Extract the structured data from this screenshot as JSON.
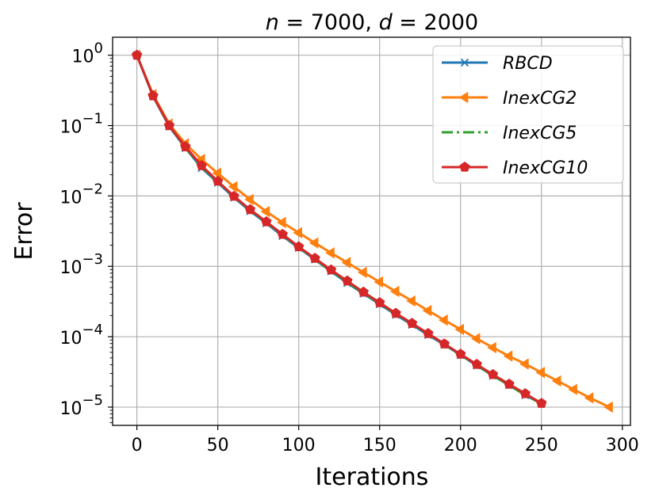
{
  "chart_data": {
    "type": "line",
    "title": "n = 7000, d = 2000",
    "title_parts": {
      "n_label": "n",
      "n_value": "7000",
      "d_label": "d",
      "d_value": "2000"
    },
    "xlabel": "Iterations",
    "ylabel": "Error",
    "yscale": "log",
    "xlim": [
      -15,
      305
    ],
    "ylim": [
      5.5e-06,
      1.8
    ],
    "x_ticks": [
      0,
      50,
      100,
      150,
      200,
      250,
      300
    ],
    "x_tick_labels": [
      "0",
      "50",
      "100",
      "150",
      "200",
      "250",
      "300"
    ],
    "y_ticks": [
      1,
      0.1,
      0.01,
      0.001,
      0.0001,
      1e-05
    ],
    "y_tick_labels": [
      {
        "base": "10",
        "exp": "0"
      },
      {
        "base": "10",
        "exp": "−1"
      },
      {
        "base": "10",
        "exp": "−2"
      },
      {
        "base": "10",
        "exp": "−3"
      },
      {
        "base": "10",
        "exp": "−4"
      },
      {
        "base": "10",
        "exp": "−5"
      }
    ],
    "grid": true,
    "legend_position": "top-right",
    "series": [
      {
        "name": "RBCD",
        "color": "#1f77b4",
        "marker": "x",
        "linestyle": "solid",
        "x": [
          0,
          10,
          20,
          30,
          40,
          50,
          60,
          70,
          80,
          90,
          100,
          110,
          120,
          130,
          140,
          150,
          160,
          170,
          180,
          190,
          200,
          210,
          220,
          230,
          240,
          250
        ],
        "values": [
          1.0,
          0.26,
          0.097,
          0.048,
          0.025,
          0.0155,
          0.0095,
          0.0061,
          0.0041,
          0.0027,
          0.00183,
          0.00125,
          0.00085,
          0.00058,
          0.00041,
          0.00029,
          0.000205,
          0.000148,
          0.000106,
          7.7e-05,
          5.5e-05,
          3.9e-05,
          2.8e-05,
          2.05e-05,
          1.48e-05,
          1.12e-05
        ]
      },
      {
        "name": "InexCG2",
        "color": "#ff7f0e",
        "marker": "triangle-left",
        "linestyle": "solid",
        "x": [
          0,
          10,
          20,
          30,
          40,
          50,
          60,
          70,
          80,
          90,
          100,
          110,
          120,
          130,
          140,
          150,
          160,
          170,
          180,
          190,
          200,
          210,
          220,
          230,
          240,
          250,
          260,
          270,
          280,
          292
        ],
        "values": [
          1.0,
          0.275,
          0.105,
          0.055,
          0.033,
          0.021,
          0.0135,
          0.0089,
          0.006,
          0.0042,
          0.003,
          0.00215,
          0.00155,
          0.00113,
          0.00082,
          0.0006,
          0.00044,
          0.000322,
          0.000235,
          0.000172,
          0.000127,
          9.4e-05,
          7e-05,
          5.3e-05,
          4.1e-05,
          3.1e-05,
          2.35e-05,
          1.78e-05,
          1.35e-05,
          1e-05
        ]
      },
      {
        "name": "InexCG5",
        "color": "#2ca02c",
        "marker": "none",
        "linestyle": "dashdot",
        "x": [
          0,
          10,
          20,
          30,
          40,
          50,
          60,
          70,
          80,
          90,
          100,
          110,
          120,
          130,
          140,
          150,
          160,
          170,
          180,
          190,
          200,
          210,
          220,
          230,
          240,
          250
        ],
        "values": [
          1.0,
          0.265,
          0.099,
          0.049,
          0.026,
          0.016,
          0.0098,
          0.0063,
          0.0042,
          0.0028,
          0.00186,
          0.00127,
          0.00087,
          0.0006,
          0.00042,
          0.000298,
          0.00021,
          0.000152,
          0.000109,
          7.8e-05,
          5.55e-05,
          3.95e-05,
          2.82e-05,
          2.05e-05,
          1.48e-05,
          1.12e-05
        ]
      },
      {
        "name": "InexCG10",
        "color": "#d62728",
        "marker": "pentagon",
        "linestyle": "solid",
        "x": [
          0,
          10,
          20,
          30,
          40,
          50,
          60,
          70,
          80,
          90,
          100,
          110,
          120,
          130,
          140,
          150,
          160,
          170,
          180,
          190,
          200,
          210,
          220,
          230,
          240,
          250
        ],
        "values": [
          1.0,
          0.265,
          0.1,
          0.05,
          0.027,
          0.0162,
          0.0099,
          0.0064,
          0.0043,
          0.00285,
          0.0019,
          0.0013,
          0.00089,
          0.00062,
          0.00043,
          0.000305,
          0.000215,
          0.000155,
          0.000111,
          7.9e-05,
          5.65e-05,
          4.05e-05,
          2.9e-05,
          2.12e-05,
          1.55e-05,
          1.13e-05
        ]
      }
    ]
  }
}
